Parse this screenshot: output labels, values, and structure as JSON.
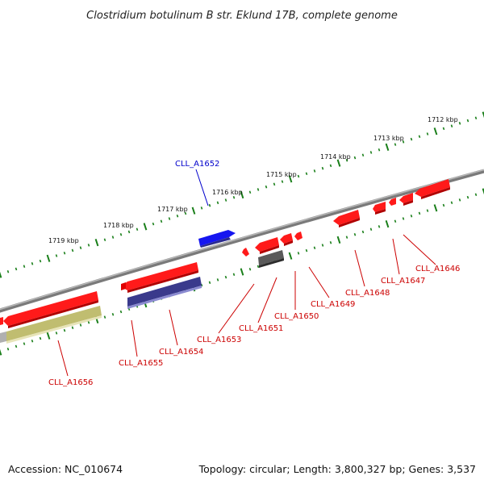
{
  "title": "Clostridium botulinum B str. Eklund 17B, complete genome",
  "footer": {
    "accession": "Accession: NC_010674",
    "summary": "Topology: circular; Length: 3,800,327 bp; Genes: 3,537"
  },
  "colors": {
    "backbone": "#8a8a8a",
    "tick_track": "#1a7f1a",
    "gene_red": "#ff1a1a",
    "gene_blue": "#1010ee",
    "gene_navy": "#3a3a8c",
    "gene_gray": "#5a5a5a",
    "gene_olive": "#c0bd70",
    "label_red": "#cc0000",
    "label_blue": "#0000cc"
  },
  "scale_labels": [
    "1712 kbp",
    "1713 kbp",
    "1714 kbp",
    "1715 kbp",
    "1716 kbp",
    "1717 kbp",
    "1718 kbp",
    "1719 kbp"
  ],
  "gene_labels": [
    {
      "text": "CLL_A1646",
      "color": "red"
    },
    {
      "text": "CLL_A1647",
      "color": "red"
    },
    {
      "text": "CLL_A1648",
      "color": "red"
    },
    {
      "text": "CLL_A1649",
      "color": "red"
    },
    {
      "text": "CLL_A1650",
      "color": "red"
    },
    {
      "text": "CLL_A1651",
      "color": "red"
    },
    {
      "text": "CLL_A1652",
      "color": "blue"
    },
    {
      "text": "CLL_A1653",
      "color": "red"
    },
    {
      "text": "CLL_A1654",
      "color": "red"
    },
    {
      "text": "CLL_A1655",
      "color": "red"
    },
    {
      "text": "CLL_A1656",
      "color": "red"
    }
  ]
}
